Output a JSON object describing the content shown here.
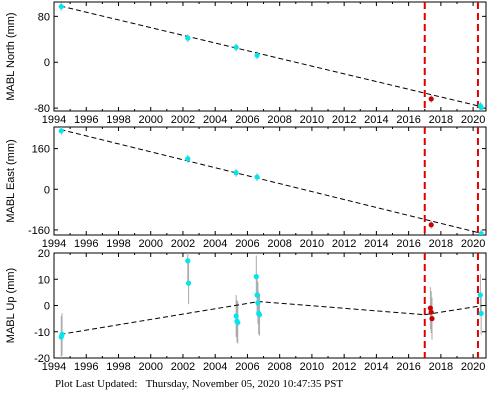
{
  "chart_data": [
    {
      "type": "scatter",
      "ylabel": "MABL North (mm)",
      "xlim": [
        1994,
        2020.8
      ],
      "ylim": [
        -85,
        105
      ],
      "yticks": [
        -80,
        0,
        80
      ],
      "xticks": [
        1994,
        1996,
        1998,
        2000,
        2002,
        2004,
        2006,
        2008,
        2010,
        2012,
        2014,
        2016,
        2018,
        2020
      ],
      "trend": [
        [
          1994.4,
          98
        ],
        [
          2020.6,
          -78
        ]
      ],
      "vlines": [
        2017.0,
        2020.3
      ],
      "series": [
        {
          "color": "#00e5ee",
          "points": [
            [
              1994.45,
              97
            ],
            [
              2002.3,
              42
            ],
            [
              2005.3,
              26
            ],
            [
              2006.6,
              12
            ],
            [
              2020.45,
              -76
            ],
            [
              2020.5,
              -79
            ]
          ]
        },
        {
          "color": "#cc0000",
          "points": [
            [
              2017.4,
              -64
            ]
          ]
        }
      ],
      "grid": false
    },
    {
      "type": "scatter",
      "ylabel": "MABL East (mm)",
      "xlim": [
        1994,
        2020.8
      ],
      "ylim": [
        -180,
        245
      ],
      "yticks": [
        -160,
        0,
        160
      ],
      "xticks": [
        1994,
        1996,
        1998,
        2000,
        2002,
        2004,
        2006,
        2008,
        2010,
        2012,
        2014,
        2016,
        2018,
        2020
      ],
      "trend": [
        [
          1994.4,
          235
        ],
        [
          2020.6,
          -175
        ]
      ],
      "vlines": [
        2017.0,
        2020.3
      ],
      "series": [
        {
          "color": "#00e5ee",
          "points": [
            [
              1994.45,
              230
            ],
            [
              2002.3,
              120
            ],
            [
              2005.3,
              65
            ],
            [
              2006.6,
              48
            ],
            [
              2020.5,
              -175
            ]
          ]
        },
        {
          "color": "#cc0000",
          "points": [
            [
              2017.4,
              -140
            ]
          ]
        }
      ],
      "grid": false
    },
    {
      "type": "scatter",
      "ylabel": "MABL Up (mm)",
      "xlim": [
        1994,
        2020.8
      ],
      "ylim": [
        -20,
        20
      ],
      "yticks": [
        -20,
        -10,
        0,
        10,
        20
      ],
      "xticks": [
        1994,
        1996,
        1998,
        2000,
        2002,
        2004,
        2006,
        2008,
        2010,
        2012,
        2014,
        2016,
        2018,
        2020
      ],
      "trend": [
        [
          1994.4,
          -11
        ],
        [
          2006.7,
          1.5
        ],
        [
          2017.0,
          -3.5
        ],
        [
          2020.6,
          0
        ]
      ],
      "vlines": [
        2017.0,
        2020.3
      ],
      "error_bar": 8,
      "series": [
        {
          "color": "#00e5ee",
          "points": [
            [
              1994.45,
              -12
            ],
            [
              1994.5,
              -11
            ],
            [
              2002.3,
              17
            ],
            [
              2002.35,
              8.5
            ],
            [
              2005.3,
              -4
            ],
            [
              2005.35,
              -6
            ],
            [
              2005.4,
              -6.5
            ],
            [
              2006.55,
              11
            ],
            [
              2006.6,
              4
            ],
            [
              2006.65,
              1
            ],
            [
              2006.7,
              -3
            ],
            [
              2006.75,
              -3.5
            ],
            [
              2020.45,
              4
            ],
            [
              2020.5,
              -3
            ]
          ]
        },
        {
          "color": "#cc0000",
          "points": [
            [
              2017.35,
              -1
            ],
            [
              2017.4,
              -2.5
            ],
            [
              2017.45,
              -5
            ]
          ]
        }
      ],
      "grid": false
    }
  ],
  "footer": {
    "label": "Plot Last Updated:",
    "value": "Thursday, November 05, 2020 10:47:35 PST"
  }
}
